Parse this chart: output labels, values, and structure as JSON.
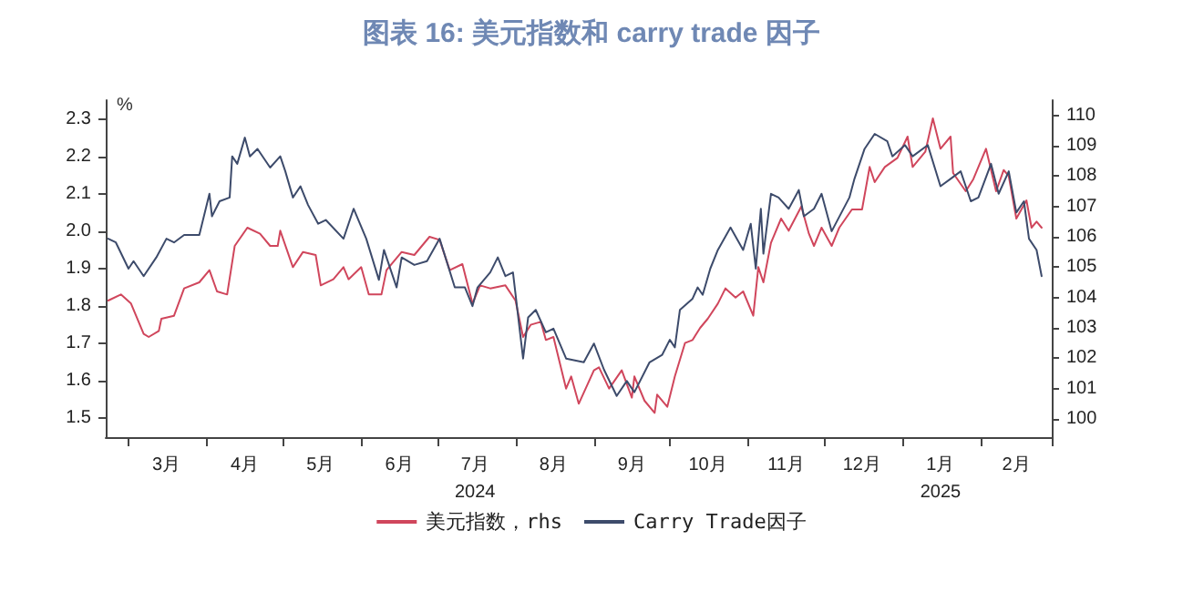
{
  "chart_data": {
    "type": "line",
    "title": "图表 16: 美元指数和 carry trade 因子",
    "ylabel": "%",
    "legend": "bottom",
    "grid": false,
    "marker": "none",
    "xlim": [
      "2024-02-21",
      "2025-03-01"
    ],
    "xticks": [
      {
        "value": "2024-03-01",
        "label": null
      },
      {
        "value": "2024-03-16",
        "label": "3月"
      },
      {
        "value": "2024-04-01",
        "label": null
      },
      {
        "value": "2024-04-16",
        "label": "4月"
      },
      {
        "value": "2024-05-01",
        "label": null
      },
      {
        "value": "2024-05-16",
        "label": "5月"
      },
      {
        "value": "2024-06-01",
        "label": null
      },
      {
        "value": "2024-06-16",
        "label": "6月"
      },
      {
        "value": "2024-07-01",
        "label": null
      },
      {
        "value": "2024-07-16",
        "label": "7月\n2024"
      },
      {
        "value": "2024-08-01",
        "label": null
      },
      {
        "value": "2024-08-16",
        "label": "8月"
      },
      {
        "value": "2024-09-01",
        "label": null
      },
      {
        "value": "2024-09-16",
        "label": "9月"
      },
      {
        "value": "2024-10-01",
        "label": null
      },
      {
        "value": "2024-10-16",
        "label": "10月"
      },
      {
        "value": "2024-11-01",
        "label": null
      },
      {
        "value": "2024-11-16",
        "label": "11月"
      },
      {
        "value": "2024-12-01",
        "label": null
      },
      {
        "value": "2024-12-16",
        "label": "12月"
      },
      {
        "value": "2025-01-01",
        "label": null
      },
      {
        "value": "2025-01-16",
        "label": "1月\n2025"
      },
      {
        "value": "2025-02-01",
        "label": null
      },
      {
        "value": "2025-02-15",
        "label": "2月"
      },
      {
        "value": "2025-03-01",
        "label": null
      }
    ],
    "ylim": [
      1.45,
      2.35
    ],
    "yticks": [
      1.5,
      1.6,
      1.7,
      1.8,
      1.9,
      {
        "value": 2.0,
        "label": "2.0"
      },
      2.1,
      2.2,
      2.3
    ],
    "y2lim": [
      99.4,
      110.5
    ],
    "y2ticks": [
      100,
      101,
      102,
      103,
      104,
      105,
      106,
      107,
      108,
      109,
      110
    ],
    "series": [
      {
        "name": "美元指数，rhs",
        "color": "#d0465c",
        "axis": "y2",
        "x": [
          "2024-02-22",
          "2024-02-27",
          "2024-03-02",
          "2024-03-07",
          "2024-03-09",
          "2024-03-13",
          "2024-03-14",
          "2024-03-19",
          "2024-03-23",
          "2024-03-29",
          "2024-04-02",
          "2024-04-05",
          "2024-04-09",
          "2024-04-12",
          "2024-04-17",
          "2024-04-22",
          "2024-04-26",
          "2024-04-29",
          "2024-04-30",
          "2024-05-05",
          "2024-05-09",
          "2024-05-14",
          "2024-05-16",
          "2024-05-21",
          "2024-05-25",
          "2024-05-27",
          "2024-06-01",
          "2024-06-04",
          "2024-06-09",
          "2024-06-11",
          "2024-06-17",
          "2024-06-22",
          "2024-06-28",
          "2024-07-02",
          "2024-07-06",
          "2024-07-11",
          "2024-07-15",
          "2024-07-18",
          "2024-07-22",
          "2024-07-28",
          "2024-08-01",
          "2024-08-04",
          "2024-08-07",
          "2024-08-11",
          "2024-08-13",
          "2024-08-16",
          "2024-08-21",
          "2024-08-23",
          "2024-08-26",
          "2024-09-01",
          "2024-09-03",
          "2024-09-07",
          "2024-09-12",
          "2024-09-16",
          "2024-09-17",
          "2024-09-21",
          "2024-09-25",
          "2024-09-26",
          "2024-09-30",
          "2024-10-03",
          "2024-10-07",
          "2024-10-10",
          "2024-10-13",
          "2024-10-16",
          "2024-10-20",
          "2024-10-23",
          "2024-10-27",
          "2024-10-30",
          "2024-11-03",
          "2024-11-05",
          "2024-11-07",
          "2024-11-10",
          "2024-11-14",
          "2024-11-17",
          "2024-11-22",
          "2024-11-25",
          "2024-11-27",
          "2024-11-30",
          "2024-12-04",
          "2024-12-07",
          "2024-12-12",
          "2024-12-16",
          "2024-12-19",
          "2024-12-21",
          "2024-12-25",
          "2024-12-30",
          "2025-01-03",
          "2025-01-05",
          "2025-01-10",
          "2025-01-13",
          "2025-01-16",
          "2025-01-20",
          "2025-01-21",
          "2025-01-26",
          "2025-01-29",
          "2025-02-03",
          "2025-02-07",
          "2025-02-10",
          "2025-02-12",
          "2025-02-15",
          "2025-02-19",
          "2025-02-21",
          "2025-02-23",
          "2025-02-25"
        ],
        "values": [
          103.9,
          104.1,
          103.8,
          102.8,
          102.7,
          102.9,
          103.3,
          103.4,
          104.3,
          104.5,
          104.9,
          104.2,
          104.1,
          105.7,
          106.3,
          106.1,
          105.7,
          105.7,
          106.2,
          105.0,
          105.5,
          105.4,
          104.4,
          104.6,
          105.0,
          104.6,
          105.0,
          104.1,
          104.1,
          104.9,
          105.5,
          105.4,
          106.0,
          105.9,
          104.9,
          105.1,
          103.8,
          104.4,
          104.3,
          104.4,
          103.9,
          102.7,
          103.1,
          103.2,
          102.6,
          102.7,
          101.0,
          101.4,
          100.5,
          101.6,
          101.7,
          101.0,
          101.6,
          100.7,
          101.4,
          100.6,
          100.2,
          100.8,
          100.4,
          101.4,
          102.5,
          102.6,
          103.0,
          103.3,
          103.8,
          104.3,
          104.0,
          104.2,
          103.4,
          105.0,
          104.5,
          105.8,
          106.6,
          106.2,
          107.0,
          106.1,
          105.7,
          106.3,
          105.7,
          106.3,
          106.9,
          106.9,
          108.3,
          107.8,
          108.3,
          108.6,
          109.3,
          108.3,
          108.8,
          109.9,
          108.9,
          109.3,
          108.1,
          107.5,
          107.9,
          108.9,
          107.5,
          108.2,
          108.0,
          106.6,
          107.2,
          106.3,
          106.5,
          106.3
        ]
      },
      {
        "name": "Carry Trade因子",
        "color": "#3d4b6b",
        "x": [
          "2024-02-22",
          "2024-02-25",
          "2024-03-01",
          "2024-03-03",
          "2024-03-07",
          "2024-03-12",
          "2024-03-16",
          "2024-03-19",
          "2024-03-23",
          "2024-03-29",
          "2024-04-02",
          "2024-04-03",
          "2024-04-06",
          "2024-04-10",
          "2024-04-11",
          "2024-04-13",
          "2024-04-16",
          "2024-04-18",
          "2024-04-21",
          "2024-04-26",
          "2024-04-30",
          "2024-05-02",
          "2024-05-05",
          "2024-05-08",
          "2024-05-11",
          "2024-05-15",
          "2024-05-18",
          "2024-05-25",
          "2024-05-29",
          "2024-06-03",
          "2024-06-08",
          "2024-06-10",
          "2024-06-15",
          "2024-06-17",
          "2024-06-22",
          "2024-06-27",
          "2024-07-02",
          "2024-07-08",
          "2024-07-12",
          "2024-07-15",
          "2024-07-17",
          "2024-07-22",
          "2024-07-25",
          "2024-07-28",
          "2024-07-31",
          "2024-08-04",
          "2024-08-06",
          "2024-08-09",
          "2024-08-13",
          "2024-08-16",
          "2024-08-21",
          "2024-08-28",
          "2024-09-01",
          "2024-09-05",
          "2024-09-10",
          "2024-09-14",
          "2024-09-17",
          "2024-09-23",
          "2024-09-28",
          "2024-10-01",
          "2024-10-03",
          "2024-10-05",
          "2024-10-10",
          "2024-10-12",
          "2024-10-14",
          "2024-10-17",
          "2024-10-20",
          "2024-10-25",
          "2024-10-30",
          "2024-11-02",
          "2024-11-04",
          "2024-11-06",
          "2024-11-07",
          "2024-11-10",
          "2024-11-13",
          "2024-11-17",
          "2024-11-21",
          "2024-11-23",
          "2024-11-27",
          "2024-11-30",
          "2024-12-04",
          "2024-12-11",
          "2024-12-13",
          "2024-12-17",
          "2024-12-21",
          "2024-12-26",
          "2024-12-28",
          "2025-01-02",
          "2025-01-05",
          "2025-01-11",
          "2025-01-16",
          "2025-01-20",
          "2025-01-24",
          "2025-01-28",
          "2025-01-31",
          "2025-02-05",
          "2025-02-08",
          "2025-02-12",
          "2025-02-15",
          "2025-02-18",
          "2025-02-20",
          "2025-02-23",
          "2025-02-25"
        ],
        "values": [
          1.98,
          1.97,
          1.9,
          1.92,
          1.88,
          1.93,
          1.98,
          1.97,
          1.99,
          1.99,
          2.1,
          2.04,
          2.08,
          2.09,
          2.2,
          2.18,
          2.25,
          2.2,
          2.22,
          2.17,
          2.2,
          2.16,
          2.09,
          2.12,
          2.07,
          2.02,
          2.03,
          1.98,
          2.06,
          1.98,
          1.87,
          1.95,
          1.85,
          1.93,
          1.91,
          1.92,
          1.98,
          1.85,
          1.85,
          1.8,
          1.85,
          1.89,
          1.93,
          1.88,
          1.89,
          1.66,
          1.77,
          1.79,
          1.73,
          1.74,
          1.66,
          1.65,
          1.7,
          1.63,
          1.56,
          1.6,
          1.57,
          1.65,
          1.67,
          1.71,
          1.69,
          1.79,
          1.82,
          1.85,
          1.83,
          1.9,
          1.95,
          2.01,
          1.95,
          2.02,
          1.9,
          2.06,
          1.94,
          2.1,
          2.09,
          2.06,
          2.11,
          2.04,
          2.06,
          2.1,
          2.0,
          2.09,
          2.14,
          2.22,
          2.26,
          2.24,
          2.2,
          2.23,
          2.2,
          2.23,
          2.12,
          2.14,
          2.16,
          2.08,
          2.09,
          2.18,
          2.1,
          2.16,
          2.05,
          2.08,
          1.98,
          1.95,
          1.88
        ]
      }
    ]
  }
}
